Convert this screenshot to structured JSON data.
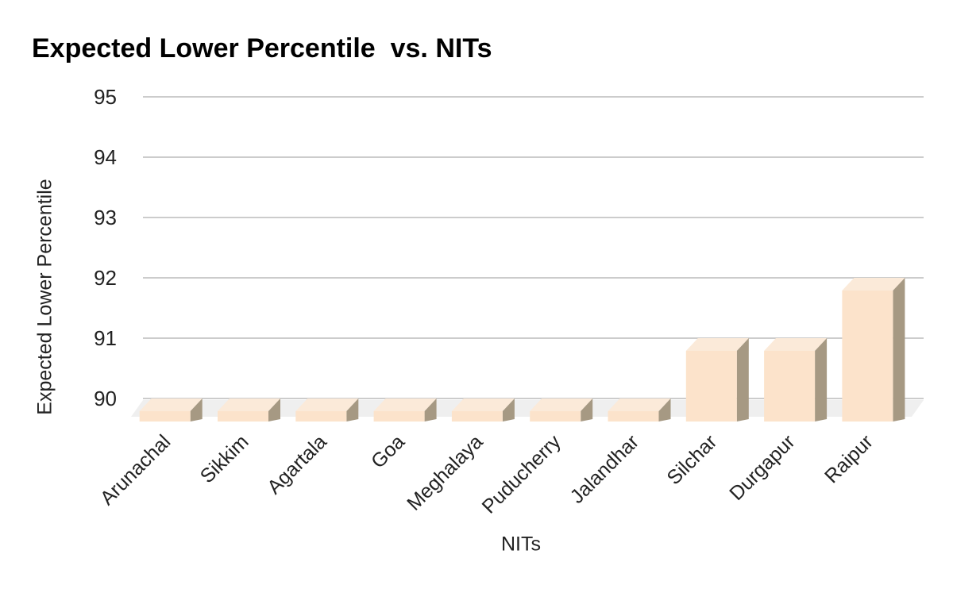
{
  "title": "Expected Lower Percentile  vs. NITs",
  "chart_data": {
    "type": "bar",
    "subtype": "3d-column",
    "title": "Expected Lower Percentile  vs. NITs",
    "categories": [
      "Arunachal",
      "Sikkim",
      "Agartala",
      "Goa",
      "Meghalaya",
      "Puducherry",
      "Jalandhar",
      "Silchar",
      "Durgapur",
      "Raipur"
    ],
    "values": [
      90,
      90,
      90,
      90,
      90,
      90,
      90,
      91,
      91,
      92
    ],
    "xlabel": "NITs",
    "ylabel": "Expected Lower Percentile",
    "ylim": [
      90,
      95
    ],
    "yticks": [
      90,
      91,
      92,
      93,
      94,
      95
    ],
    "grid": true,
    "legend": "none",
    "colors": {
      "bar_front": "#fce3cb",
      "bar_top": "#fbead9",
      "bar_side": "#a69983",
      "floor": "#efefef",
      "gridline": "#cccccc",
      "text": "#222222",
      "title_text": "#000000",
      "background": "#ffffff"
    }
  }
}
